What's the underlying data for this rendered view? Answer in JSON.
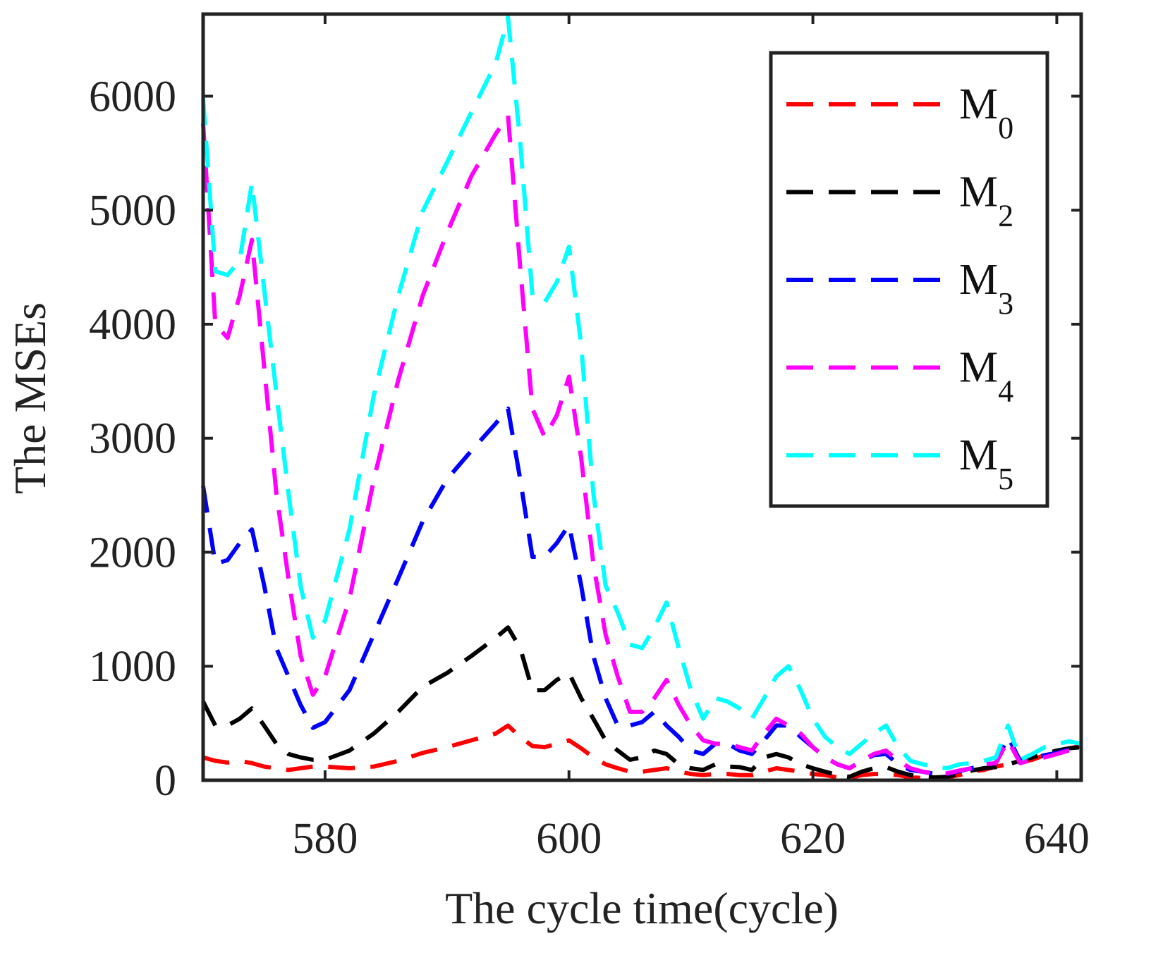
{
  "chart_data": {
    "type": "line",
    "title": "",
    "xlabel": "The cycle time(cycle)",
    "ylabel": "The MSEs",
    "xlim": [
      570,
      642
    ],
    "ylim": [
      0,
      6720
    ],
    "xticks": [
      580,
      600,
      620,
      640
    ],
    "yticks": [
      0,
      1000,
      2000,
      3000,
      4000,
      5000,
      6000
    ],
    "grid": false,
    "legend_position": "top-right",
    "line_style": "dashed",
    "x": [
      570,
      571,
      572,
      573,
      574,
      575,
      576,
      577,
      578,
      579,
      580,
      582,
      584,
      586,
      588,
      590,
      592,
      594,
      595,
      596,
      597,
      598,
      599,
      600,
      601,
      602,
      603,
      604,
      605,
      606,
      607,
      608,
      609,
      610,
      611,
      612,
      613,
      614,
      615,
      616,
      617,
      618,
      619,
      620,
      621,
      622,
      623,
      624,
      625,
      626,
      627,
      628,
      629,
      630,
      631,
      632,
      633,
      634,
      635,
      636,
      637,
      638,
      639,
      640,
      641,
      642
    ],
    "series": [
      {
        "name": "M",
        "sub": "0",
        "color": "#ff0000",
        "values": [
          200,
          170,
          155,
          170,
          150,
          120,
          105,
          90,
          105,
          120,
          120,
          105,
          120,
          170,
          240,
          290,
          350,
          410,
          480,
          380,
          300,
          290,
          320,
          350,
          280,
          200,
          140,
          105,
          75,
          75,
          90,
          105,
          75,
          55,
          45,
          55,
          55,
          45,
          45,
          75,
          105,
          90,
          75,
          55,
          45,
          25,
          20,
          45,
          55,
          55,
          45,
          25,
          20,
          20,
          25,
          45,
          75,
          90,
          120,
          140,
          155,
          180,
          220,
          240,
          280,
          300
        ]
      },
      {
        "name": "M",
        "sub": "2",
        "color": "#000000",
        "values": [
          690,
          480,
          480,
          540,
          630,
          480,
          320,
          230,
          200,
          180,
          180,
          260,
          410,
          600,
          820,
          940,
          1090,
          1250,
          1340,
          1160,
          790,
          790,
          880,
          940,
          720,
          540,
          350,
          260,
          180,
          200,
          260,
          230,
          140,
          105,
          90,
          140,
          120,
          115,
          90,
          200,
          230,
          200,
          140,
          105,
          75,
          45,
          30,
          75,
          105,
          115,
          75,
          45,
          30,
          25,
          30,
          55,
          85,
          105,
          115,
          140,
          170,
          200,
          230,
          260,
          280,
          290
        ]
      },
      {
        "name": "M",
        "sub": "3",
        "color": "#0000ff",
        "values": [
          2580,
          1900,
          1930,
          2080,
          2200,
          1710,
          1160,
          910,
          660,
          460,
          510,
          790,
          1280,
          1770,
          2270,
          2640,
          2890,
          3130,
          3260,
          2640,
          1960,
          1960,
          2080,
          2240,
          1710,
          1090,
          720,
          480,
          480,
          510,
          600,
          480,
          380,
          260,
          230,
          320,
          320,
          260,
          230,
          350,
          480,
          480,
          380,
          290,
          200,
          140,
          105,
          170,
          220,
          230,
          140,
          90,
          75,
          55,
          55,
          80,
          105,
          130,
          150,
          380,
          170,
          190,
          220,
          240,
          270,
          280
        ]
      },
      {
        "name": "M",
        "sub": "4",
        "color": "#ff00ff",
        "values": [
          5760,
          4000,
          3880,
          4250,
          4740,
          3630,
          2520,
          1770,
          1090,
          750,
          910,
          1590,
          2640,
          3510,
          4250,
          4800,
          5300,
          5670,
          5830,
          4500,
          3260,
          3010,
          3200,
          3540,
          2830,
          1900,
          1280,
          910,
          600,
          600,
          720,
          880,
          660,
          480,
          350,
          320,
          320,
          290,
          260,
          410,
          540,
          480,
          410,
          290,
          200,
          140,
          105,
          170,
          230,
          260,
          170,
          105,
          75,
          60,
          60,
          85,
          105,
          140,
          150,
          350,
          150,
          180,
          200,
          230,
          260,
          280
        ]
      },
      {
        "name": "M",
        "sub": "5",
        "color": "#00ffff",
        "values": [
          5980,
          4465,
          4430,
          4560,
          5240,
          4310,
          3400,
          2520,
          1700,
          1250,
          1400,
          2200,
          3380,
          4250,
          4990,
          5420,
          5860,
          6290,
          6690,
          5600,
          4250,
          4190,
          4370,
          4680,
          3820,
          2520,
          1710,
          1470,
          1190,
          1160,
          1340,
          1560,
          1160,
          790,
          540,
          720,
          690,
          630,
          540,
          720,
          910,
          1000,
          790,
          540,
          380,
          290,
          230,
          320,
          410,
          480,
          290,
          170,
          140,
          120,
          105,
          140,
          150,
          170,
          200,
          480,
          180,
          230,
          290,
          320,
          340,
          320
        ]
      }
    ]
  }
}
